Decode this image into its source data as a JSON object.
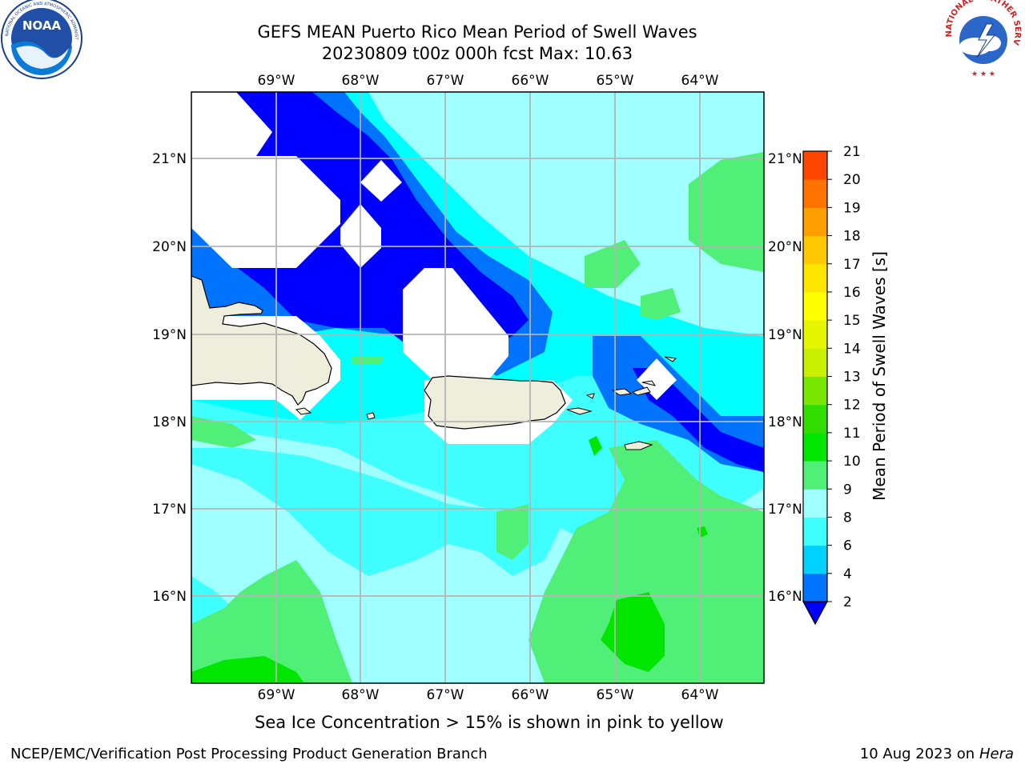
{
  "header": {
    "title_line1": "GEFS MEAN Puerto Rico Mean Period of Swell Waves",
    "title_line2": "20230809 t00z 000h fcst   Max: 10.63"
  },
  "logos": {
    "left": "NOAA",
    "left_ring_text": "NATIONAL OCEANIC AND ATMOSPHERIC ADMINISTRATION · U.S. DEPARTMENT OF COMMERCE",
    "right_ring_text": "NATIONAL WEATHER SERVICE"
  },
  "map": {
    "lon_ticks": [
      "69°W",
      "68°W",
      "67°W",
      "66°W",
      "65°W",
      "64°W"
    ],
    "lat_ticks": [
      "21°N",
      "20°N",
      "19°N",
      "18°N",
      "17°N",
      "16°N"
    ],
    "note": "Sea Ice Concentration > 15% is shown in pink to yellow"
  },
  "colorbar": {
    "label": "Mean Period of Swell Waves [s]",
    "ticks": [
      "2",
      "4",
      "6",
      "8",
      "9",
      "10",
      "11",
      "12",
      "13",
      "14",
      "15",
      "16",
      "17",
      "18",
      "19",
      "20",
      "21"
    ],
    "colors": [
      "#0073ff",
      "#00d2ff",
      "#40ffff",
      "#a0ffff",
      "#50f078",
      "#00e600",
      "#32dc00",
      "#78e600",
      "#c8f000",
      "#e6f500",
      "#ffff00",
      "#ffe600",
      "#ffc800",
      "#ffa000",
      "#ff7300",
      "#ff4600",
      "#ff0000"
    ],
    "underflow_color": "#0000ff"
  },
  "footer": {
    "left": "NCEP/EMC/Verification Post Processing Product Generation Branch",
    "date": "10 Aug 2023 on",
    "host": "Hera"
  }
}
